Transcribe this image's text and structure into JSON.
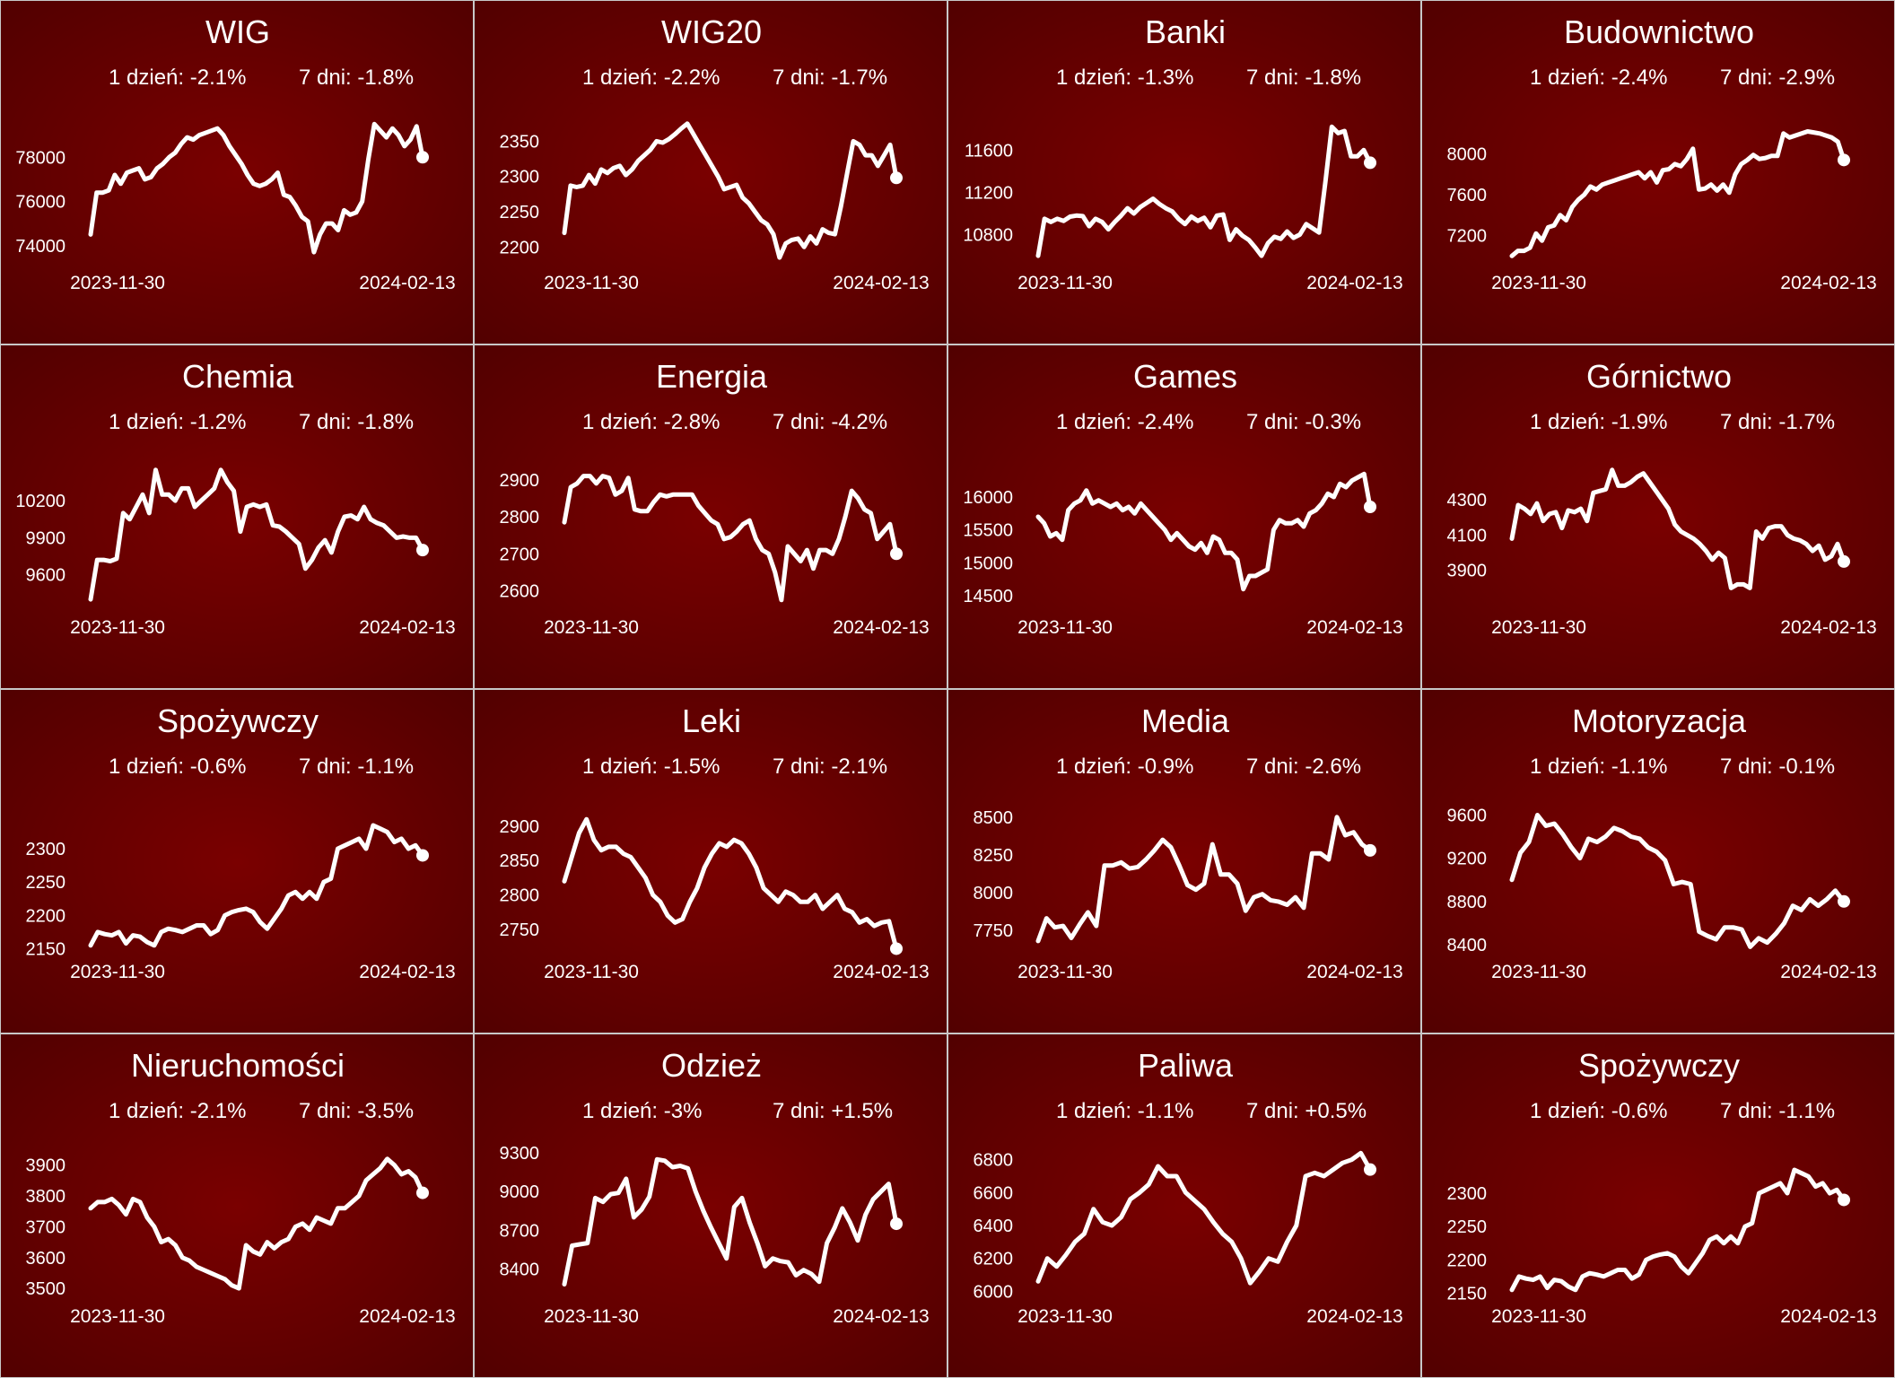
{
  "colors": {
    "panel_dark": "#4f0000",
    "panel_light": "#7a0000",
    "line": "#ffffff",
    "border": "#c8c8c8"
  },
  "labels": {
    "one_day": "1 dzień:",
    "seven_days": "7 dni:"
  },
  "chart_data": [
    {
      "type": "line",
      "title": "WIG",
      "d1": "-2.1%",
      "d7": "-1.8%",
      "x_start": "2023-11-30",
      "x_end": "2024-02-13",
      "yticks": [
        74000,
        76000,
        78000
      ],
      "ylim": [
        73300,
        80000
      ],
      "values": [
        74500,
        76400,
        76400,
        76500,
        77200,
        76800,
        77300,
        77400,
        77500,
        77000,
        77100,
        77500,
        77700,
        78000,
        78200,
        78600,
        78900,
        78800,
        79000,
        79100,
        79200,
        79300,
        79000,
        78500,
        78100,
        77700,
        77200,
        76800,
        76700,
        76800,
        77000,
        77300,
        76300,
        76200,
        75800,
        75300,
        75100,
        73700,
        74500,
        75000,
        75000,
        74700,
        75600,
        75400,
        75500,
        76000,
        77900,
        79500,
        79200,
        78900,
        79300,
        79000,
        78500,
        78800,
        79400,
        78000
      ]
    },
    {
      "type": "line",
      "title": "WIG20",
      "d1": "-2.2%",
      "d7": "-1.7%",
      "x_start": "2023-11-30",
      "x_end": "2024-02-13",
      "yticks": [
        2200,
        2250,
        2300,
        2350
      ],
      "ylim": [
        2180,
        2390
      ],
      "values": [
        2220,
        2287,
        2285,
        2287,
        2302,
        2290,
        2310,
        2305,
        2312,
        2315,
        2302,
        2310,
        2322,
        2330,
        2338,
        2350,
        2348,
        2353,
        2360,
        2368,
        2375,
        2360,
        2345,
        2330,
        2315,
        2300,
        2282,
        2285,
        2288,
        2270,
        2262,
        2250,
        2238,
        2232,
        2218,
        2185,
        2205,
        2210,
        2212,
        2200,
        2215,
        2205,
        2225,
        2220,
        2218,
        2258,
        2305,
        2350,
        2345,
        2330,
        2330,
        2315,
        2330,
        2345,
        2298
      ]
    },
    {
      "type": "line",
      "title": "Banki",
      "d1": "-1.3%",
      "d7": "-1.8%",
      "x_start": "2023-11-30",
      "x_end": "2024-02-13",
      "yticks": [
        10800,
        11200,
        11600
      ],
      "ylim": [
        10550,
        11950
      ],
      "values": [
        10600,
        10950,
        10920,
        10950,
        10930,
        10970,
        10980,
        10975,
        10880,
        10950,
        10920,
        10850,
        10920,
        10980,
        11050,
        11000,
        11060,
        11100,
        11140,
        11090,
        11050,
        11020,
        10950,
        10900,
        10970,
        10930,
        10960,
        10870,
        10980,
        10990,
        10750,
        10850,
        10790,
        10750,
        10680,
        10600,
        10720,
        10780,
        10760,
        10830,
        10770,
        10800,
        10900,
        10860,
        10820,
        11300,
        11820,
        11760,
        11780,
        11540,
        11540,
        11600,
        11480
      ]
    },
    {
      "type": "line",
      "title": "Budownictwo",
      "d1": "-2.4%",
      "d7": "-2.9%",
      "x_start": "2023-11-30",
      "x_end": "2024-02-13",
      "yticks": [
        7200,
        7600,
        8000
      ],
      "ylim": [
        6950,
        8400
      ],
      "values": [
        7000,
        7050,
        7050,
        7080,
        7220,
        7150,
        7280,
        7300,
        7400,
        7350,
        7480,
        7550,
        7600,
        7680,
        7650,
        7700,
        7720,
        7740,
        7760,
        7780,
        7800,
        7820,
        7760,
        7820,
        7720,
        7840,
        7850,
        7900,
        7880,
        7950,
        8050,
        7650,
        7660,
        7700,
        7640,
        7700,
        7620,
        7800,
        7900,
        7940,
        7990,
        7950,
        7960,
        7980,
        7980,
        8200,
        8160,
        8180,
        8200,
        8220,
        8210,
        8200,
        8180,
        8160,
        8120,
        7940
      ]
    },
    {
      "type": "line",
      "title": "Chemia",
      "d1": "-1.2%",
      "d7": "-1.8%",
      "x_start": "2023-11-30",
      "x_end": "2024-02-13",
      "yticks": [
        9600,
        9900,
        10200
      ],
      "ylim": [
        9350,
        10550
      ],
      "values": [
        9400,
        9720,
        9720,
        9710,
        9730,
        10100,
        10050,
        10150,
        10250,
        10100,
        10450,
        10250,
        10250,
        10200,
        10300,
        10300,
        10150,
        10200,
        10250,
        10300,
        10450,
        10350,
        10280,
        9950,
        10150,
        10170,
        10150,
        10170,
        10000,
        9990,
        9950,
        9900,
        9850,
        9650,
        9720,
        9820,
        9880,
        9780,
        9950,
        10070,
        10080,
        10050,
        10150,
        10050,
        10020,
        10000,
        9950,
        9900,
        9910,
        9900,
        9900,
        9800
      ]
    },
    {
      "type": "line",
      "title": "Energia",
      "d1": "-2.8%",
      "d7": "-4.2%",
      "x_start": "2023-11-30",
      "x_end": "2024-02-13",
      "yticks": [
        2600,
        2700,
        2800,
        2900
      ],
      "ylim": [
        2560,
        2960
      ],
      "values": [
        2785,
        2880,
        2890,
        2910,
        2910,
        2890,
        2910,
        2905,
        2860,
        2870,
        2905,
        2820,
        2815,
        2815,
        2840,
        2860,
        2855,
        2860,
        2860,
        2860,
        2860,
        2830,
        2810,
        2790,
        2780,
        2740,
        2745,
        2760,
        2780,
        2790,
        2740,
        2710,
        2700,
        2650,
        2575,
        2720,
        2700,
        2680,
        2710,
        2660,
        2710,
        2710,
        2700,
        2740,
        2800,
        2870,
        2850,
        2820,
        2810,
        2740,
        2760,
        2780,
        2700
      ]
    },
    {
      "type": "line",
      "title": "Games",
      "d1": "-2.4%",
      "d7": "-0.3%",
      "x_start": "2023-11-30",
      "x_end": "2024-02-13",
      "yticks": [
        14500,
        15000,
        15500,
        16000
      ],
      "ylim": [
        14350,
        16600
      ],
      "values": [
        15700,
        15600,
        15400,
        15450,
        15350,
        15800,
        15900,
        15950,
        16100,
        15900,
        15950,
        15900,
        15850,
        15900,
        15800,
        15850,
        15750,
        15900,
        15800,
        15700,
        15600,
        15500,
        15350,
        15450,
        15350,
        15250,
        15200,
        15300,
        15150,
        15400,
        15350,
        15150,
        15150,
        15050,
        14600,
        14800,
        14800,
        14850,
        14900,
        15500,
        15650,
        15600,
        15600,
        15650,
        15550,
        15750,
        15800,
        15900,
        16050,
        16000,
        16200,
        16150,
        16250,
        16300,
        16350,
        15850
      ]
    },
    {
      "type": "line",
      "title": "Górnictwo",
      "d1": "-1.9%",
      "d7": "-1.7%",
      "x_start": "2023-11-30",
      "x_end": "2024-02-13",
      "yticks": [
        3900,
        4100,
        4300
      ],
      "ylim": [
        3700,
        4540
      ],
      "values": [
        4080,
        4270,
        4250,
        4220,
        4280,
        4180,
        4220,
        4230,
        4140,
        4240,
        4230,
        4250,
        4180,
        4340,
        4350,
        4360,
        4470,
        4380,
        4380,
        4400,
        4430,
        4450,
        4400,
        4350,
        4300,
        4250,
        4160,
        4120,
        4100,
        4080,
        4050,
        4010,
        3960,
        4000,
        3970,
        3800,
        3820,
        3820,
        3800,
        4120,
        4080,
        4140,
        4150,
        4150,
        4100,
        4080,
        4070,
        4050,
        4010,
        4040,
        3960,
        3980,
        4050,
        3950
      ]
    },
    {
      "type": "line",
      "title": "Spożywczy",
      "d1": "-0.6%",
      "d7": "-1.1%",
      "x_start": "2023-11-30",
      "x_end": "2024-02-13",
      "yticks": [
        2150,
        2200,
        2250,
        2300
      ],
      "ylim": [
        2148,
        2370
      ],
      "values": [
        2155,
        2175,
        2172,
        2170,
        2175,
        2158,
        2170,
        2168,
        2160,
        2155,
        2175,
        2180,
        2178,
        2175,
        2180,
        2185,
        2185,
        2172,
        2178,
        2200,
        2205,
        2208,
        2210,
        2205,
        2190,
        2180,
        2195,
        2210,
        2230,
        2235,
        2225,
        2235,
        2225,
        2250,
        2255,
        2300,
        2305,
        2310,
        2315,
        2300,
        2335,
        2330,
        2325,
        2310,
        2315,
        2300,
        2305,
        2290
      ]
    },
    {
      "type": "line",
      "title": "Leki",
      "d1": "-1.5%",
      "d7": "-2.1%",
      "x_start": "2023-11-30",
      "x_end": "2024-02-13",
      "yticks": [
        2750,
        2800,
        2850,
        2900
      ],
      "ylim": [
        2720,
        2935
      ],
      "values": [
        2820,
        2855,
        2890,
        2910,
        2880,
        2865,
        2870,
        2870,
        2860,
        2855,
        2840,
        2825,
        2800,
        2790,
        2770,
        2760,
        2765,
        2790,
        2810,
        2840,
        2860,
        2875,
        2870,
        2880,
        2875,
        2860,
        2840,
        2810,
        2800,
        2790,
        2805,
        2800,
        2790,
        2790,
        2800,
        2780,
        2790,
        2800,
        2780,
        2775,
        2760,
        2765,
        2755,
        2760,
        2762,
        2722
      ]
    },
    {
      "type": "line",
      "title": "Media",
      "d1": "-0.9%",
      "d7": "-2.6%",
      "x_start": "2023-11-30",
      "x_end": "2024-02-13",
      "yticks": [
        7750,
        8000,
        8250,
        8500
      ],
      "ylim": [
        7620,
        8600
      ],
      "values": [
        7680,
        7830,
        7770,
        7780,
        7700,
        7790,
        7870,
        7780,
        8180,
        8180,
        8200,
        8160,
        8170,
        8220,
        8280,
        8350,
        8300,
        8180,
        8050,
        8020,
        8060,
        8320,
        8120,
        8120,
        8060,
        7880,
        7970,
        7990,
        7950,
        7940,
        7920,
        7970,
        7900,
        8260,
        8260,
        8220,
        8500,
        8380,
        8400,
        8320,
        8280
      ]
    },
    {
      "type": "line",
      "title": "Motoryzacja",
      "d1": "-1.1%",
      "d7": "-0.1%",
      "x_start": "2023-11-30",
      "x_end": "2024-02-13",
      "yticks": [
        8400,
        8800,
        9200,
        9600
      ],
      "ylim": [
        8350,
        9720
      ],
      "values": [
        9000,
        9250,
        9350,
        9600,
        9500,
        9520,
        9420,
        9300,
        9200,
        9380,
        9350,
        9400,
        9480,
        9450,
        9400,
        9380,
        9300,
        9260,
        9180,
        8960,
        8980,
        8960,
        8520,
        8480,
        8450,
        8560,
        8560,
        8540,
        8380,
        8460,
        8420,
        8500,
        8600,
        8760,
        8720,
        8820,
        8760,
        8820,
        8900,
        8800
      ]
    },
    {
      "type": "line",
      "title": "Nieruchomości",
      "d1": "-2.1%",
      "d7": "-3.5%",
      "x_start": "2023-11-30",
      "x_end": "2024-02-13",
      "yticks": [
        3500,
        3600,
        3700,
        3800,
        3900
      ],
      "ylim": [
        3480,
        3960
      ],
      "values": [
        3760,
        3780,
        3780,
        3790,
        3770,
        3740,
        3790,
        3780,
        3730,
        3700,
        3650,
        3660,
        3640,
        3600,
        3590,
        3570,
        3560,
        3550,
        3540,
        3530,
        3510,
        3500,
        3640,
        3620,
        3610,
        3650,
        3630,
        3650,
        3660,
        3700,
        3710,
        3690,
        3730,
        3720,
        3710,
        3760,
        3760,
        3780,
        3800,
        3850,
        3870,
        3890,
        3920,
        3900,
        3870,
        3880,
        3860,
        3810
      ]
    },
    {
      "type": "line",
      "title": "Odzież",
      "d1": "-3%",
      "d7": "+1.5%",
      "x_start": "2023-11-30",
      "x_end": "2024-02-13",
      "yticks": [
        8400,
        8700,
        9000,
        9300
      ],
      "ylim": [
        8200,
        9350
      ],
      "values": [
        8280,
        8580,
        8590,
        8600,
        8950,
        8920,
        8980,
        8990,
        9100,
        8800,
        8860,
        8960,
        9250,
        9240,
        9190,
        9200,
        9180,
        9000,
        8850,
        8720,
        8600,
        8480,
        8880,
        8950,
        8760,
        8600,
        8420,
        8480,
        8460,
        8450,
        8350,
        8390,
        8360,
        8300,
        8600,
        8720,
        8870,
        8760,
        8620,
        8820,
        8940,
        9000,
        9060,
        8750
      ]
    },
    {
      "type": "line",
      "title": "Paliwa",
      "d1": "-1.1%",
      "d7": "+0.5%",
      "x_start": "2023-11-30",
      "x_end": "2024-02-13",
      "yticks": [
        6000,
        6200,
        6400,
        6600,
        6800
      ],
      "ylim": [
        5980,
        6880
      ],
      "values": [
        6060,
        6200,
        6150,
        6220,
        6300,
        6350,
        6500,
        6420,
        6400,
        6450,
        6560,
        6600,
        6650,
        6760,
        6700,
        6700,
        6600,
        6550,
        6500,
        6420,
        6350,
        6300,
        6200,
        6050,
        6120,
        6200,
        6180,
        6300,
        6400,
        6700,
        6720,
        6700,
        6740,
        6780,
        6800,
        6840,
        6740
      ]
    },
    {
      "type": "line",
      "title": "Spożywczy",
      "d1": "-0.6%",
      "d7": "-1.1%",
      "x_start": "2023-11-30",
      "x_end": "2024-02-13",
      "yticks": [
        2150,
        2200,
        2250,
        2300
      ],
      "ylim": [
        2148,
        2370
      ],
      "values": [
        2155,
        2175,
        2172,
        2170,
        2175,
        2158,
        2170,
        2168,
        2160,
        2155,
        2175,
        2180,
        2178,
        2175,
        2180,
        2185,
        2185,
        2172,
        2178,
        2200,
        2205,
        2208,
        2210,
        2205,
        2190,
        2180,
        2195,
        2210,
        2230,
        2235,
        2225,
        2235,
        2225,
        2250,
        2255,
        2300,
        2305,
        2310,
        2315,
        2300,
        2335,
        2330,
        2325,
        2310,
        2315,
        2300,
        2305,
        2290
      ]
    }
  ]
}
